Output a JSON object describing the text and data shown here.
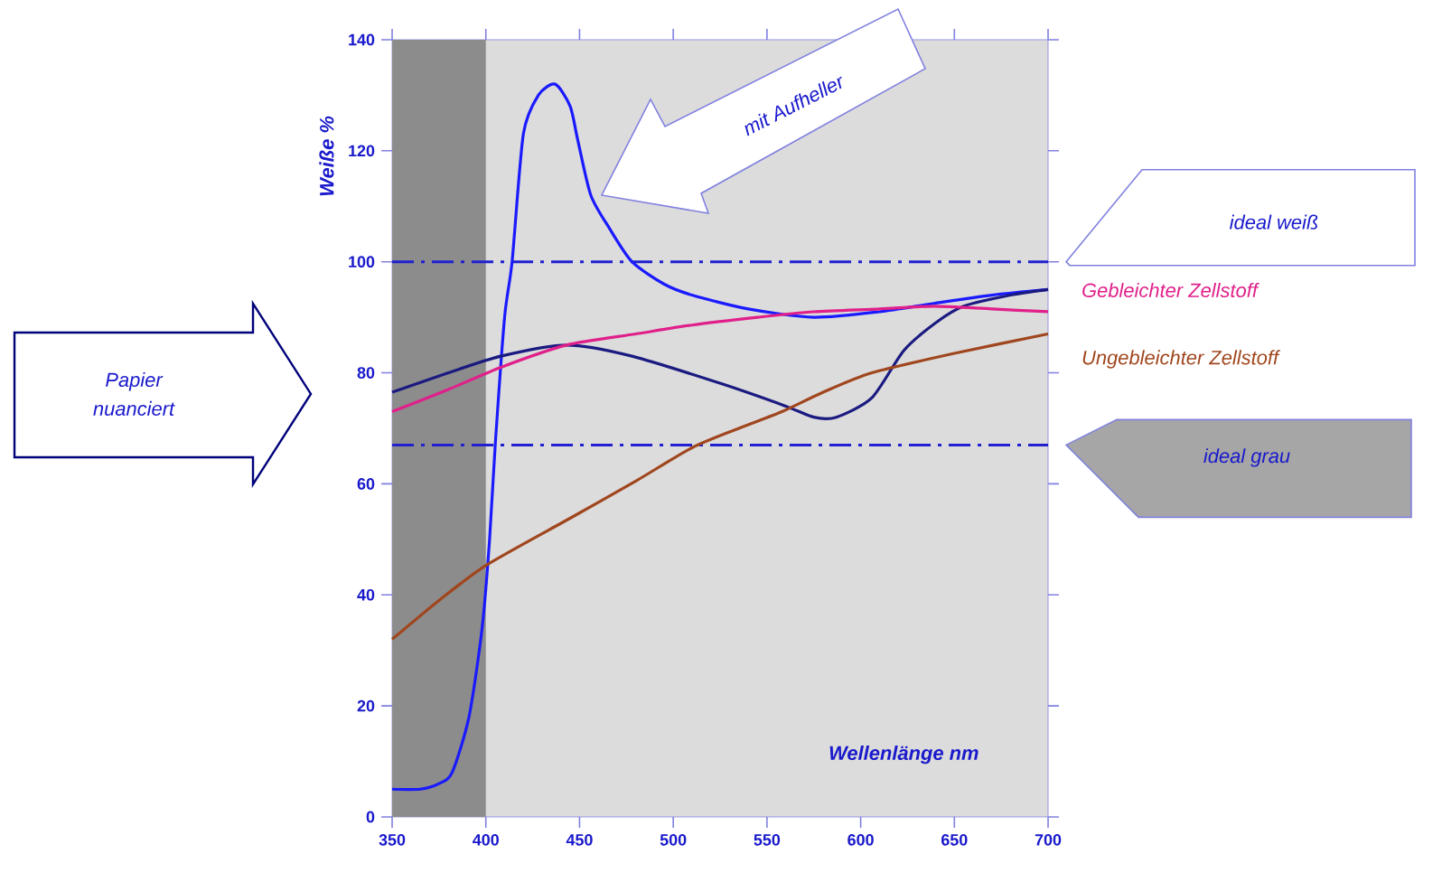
{
  "chart_data": {
    "type": "line",
    "xlabel": "Wellenlänge nm",
    "ylabel": "Weiße %",
    "xlim": [
      350,
      700
    ],
    "xticks": [
      350,
      400,
      450,
      500,
      550,
      600,
      650,
      700
    ],
    "ylim": [
      0,
      140
    ],
    "yticks": [
      0,
      20,
      40,
      60,
      80,
      100,
      120,
      140
    ],
    "line_style": "solid",
    "marker": "none",
    "series": [
      {
        "color": "#1a1aff",
        "x": [
          350,
          365,
          375,
          382,
          391,
          398,
          402,
          405,
          410,
          414,
          420,
          428,
          437,
          445,
          449,
          456,
          466,
          478,
          495,
          510,
          540,
          575,
          610,
          639,
          670,
          700
        ],
        "values": [
          5,
          5,
          6,
          8,
          18,
          34,
          50,
          67,
          90,
          100,
          123,
          130,
          132,
          128,
          122,
          112,
          106,
          100,
          96,
          94,
          91.5,
          90,
          91,
          92.5,
          94,
          95
        ]
      },
      {
        "color": "#1a1a80",
        "x": [
          350,
          380,
          408,
          443,
          478,
          526,
          560,
          575,
          587,
          606,
          623,
          640,
          655,
          680,
          700
        ],
        "values": [
          76.5,
          80,
          83,
          85,
          83,
          78,
          74,
          72,
          72,
          75.5,
          84,
          89,
          92,
          94,
          95
        ]
      },
      {
        "name": "Gebleichter Zellstoff",
        "color": "#e0208a",
        "x": [
          350,
          380,
          408,
          443,
          480,
          510,
          545,
          575,
          610,
          639,
          670,
          700
        ],
        "values": [
          73,
          77,
          81,
          85,
          87,
          88.6,
          90,
          91,
          91.5,
          92,
          91.5,
          91
        ]
      },
      {
        "name": "Ungebleichter Zellstoff",
        "color": "#a0461e",
        "x": [
          350,
          375,
          401,
          446,
          480,
          510,
          535,
          558,
          580,
          606,
          650,
          700
        ],
        "values": [
          32,
          39,
          45.5,
          54,
          60.5,
          66.5,
          70,
          73,
          76.5,
          80,
          83.5,
          87
        ]
      }
    ],
    "ref_lines": [
      {
        "axis": "y",
        "value": 100,
        "label": "ideal weiß",
        "color": "#2020d0",
        "line_style": "dashdot"
      },
      {
        "axis": "y",
        "value": 67,
        "label": "ideal grau",
        "color": "#2020d0",
        "line_style": "dashdot"
      }
    ],
    "bands": [
      {
        "axis": "x",
        "from": 350,
        "to": 400,
        "color": "#8c8c8c"
      }
    ],
    "annotations": [
      "mit Aufheller",
      "Papier nuanciert"
    ]
  }
}
